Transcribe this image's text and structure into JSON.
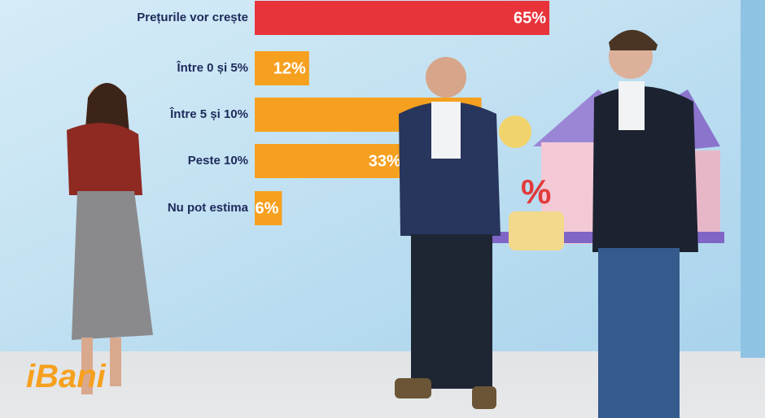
{
  "chart_data": {
    "type": "hbar",
    "categories": [
      "Prețurile vor crește",
      "Între 0 și 5%",
      "Între 5 și 10%",
      "Peste 10%",
      "Nu pot estima"
    ],
    "values": [
      65,
      12,
      50,
      33,
      6
    ],
    "value_labels": [
      "65%",
      "12%",
      null,
      "33%",
      "6%"
    ],
    "colors": [
      "#e8333b",
      "#f6a01f",
      "#f6a01f",
      "#f6a01f",
      "#f6a01f"
    ]
  },
  "logo": "iBani"
}
